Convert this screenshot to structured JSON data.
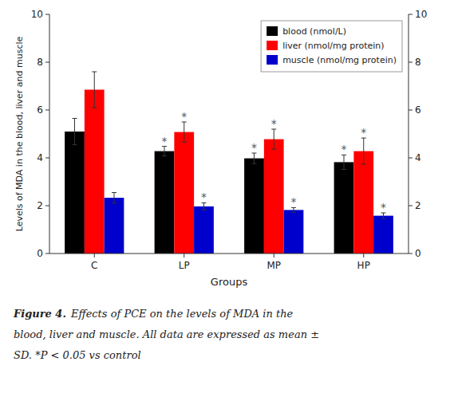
{
  "chart_data": {
    "type": "bar",
    "categories": [
      "C",
      "LP",
      "MP",
      "HP"
    ],
    "series": [
      {
        "name": "blood (nmol/L)",
        "color": "#000000",
        "values": [
          5.1,
          4.28,
          3.98,
          3.82
        ],
        "errors": [
          0.55,
          0.2,
          0.22,
          0.3
        ],
        "significant": [
          false,
          true,
          true,
          true
        ]
      },
      {
        "name": "liver (nmol/mg protein)",
        "color": "#ff0000",
        "values": [
          6.85,
          5.08,
          4.78,
          4.28
        ],
        "errors": [
          0.75,
          0.42,
          0.42,
          0.55
        ],
        "significant": [
          false,
          true,
          true,
          true
        ]
      },
      {
        "name": "muscle (nmol/mg protein)",
        "color": "#0000cc",
        "values": [
          2.33,
          1.97,
          1.82,
          1.58
        ],
        "errors": [
          0.22,
          0.15,
          0.1,
          0.12
        ],
        "significant": [
          false,
          true,
          true,
          true
        ]
      }
    ],
    "significance_mark": "*",
    "x_label": "Groups",
    "y_label": "Levels of MDA in the blood, liver and muscle",
    "ylim": [
      0,
      10
    ],
    "yticks": [
      0,
      2,
      4,
      6,
      8,
      10
    ],
    "y2lim": [
      0,
      10
    ],
    "y2ticks": [
      0,
      2,
      4,
      6,
      8,
      10
    ],
    "grid": false,
    "legend": "upper right",
    "caption_label": "Figure 4.",
    "caption": [
      "Effects of PCE on the levels of MDA in the",
      "blood, liver and muscle. All data are expressed as mean ±",
      "SD. *P < 0.05 vs control"
    ]
  }
}
